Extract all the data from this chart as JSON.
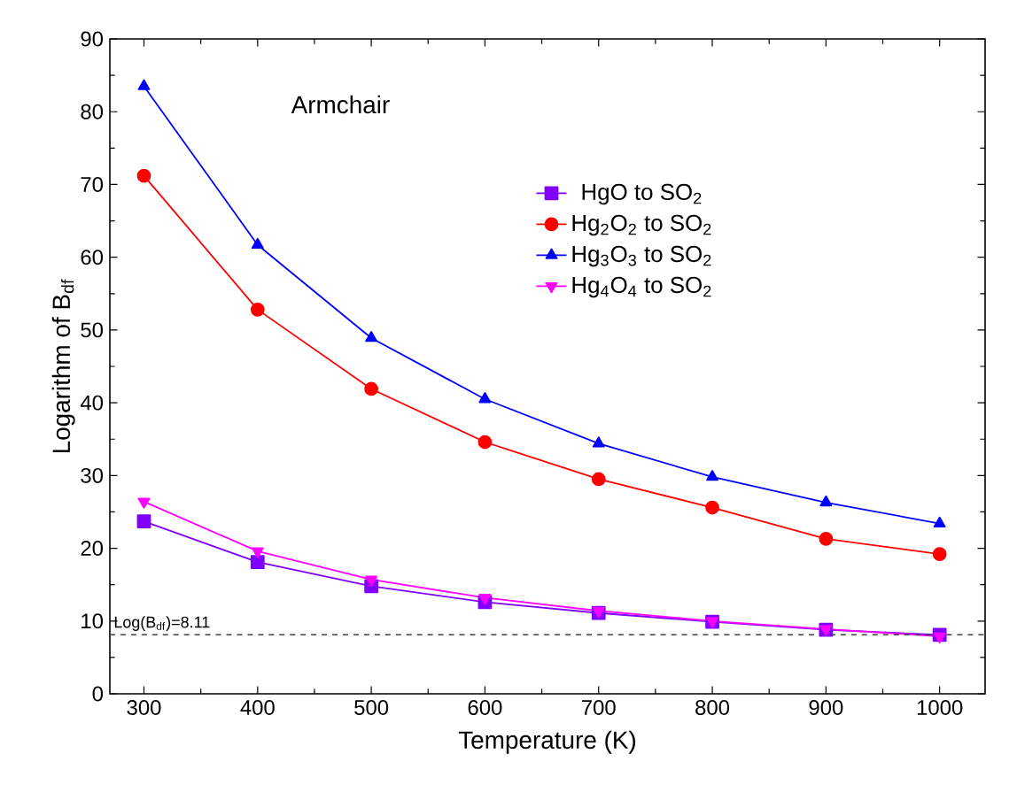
{
  "chart_data": {
    "type": "line",
    "xlabel": "Temperature (K)",
    "ylabel": "Logarithm of B$_{df}$",
    "x": [
      300,
      400,
      500,
      600,
      700,
      800,
      900,
      1000
    ],
    "series": [
      {
        "name": "HgO to SO$_{2}$",
        "color": "#8000ff",
        "marker": "square",
        "values": [
          23.7,
          18.1,
          14.8,
          12.6,
          11.1,
          9.9,
          8.8,
          8.1
        ]
      },
      {
        "name": "Hg$_{2}$O$_{2}$ to SO$_{2}$",
        "color": "#ff0000",
        "marker": "circle",
        "values": [
          71.2,
          52.8,
          41.9,
          34.6,
          29.5,
          25.6,
          21.3,
          19.2
        ]
      },
      {
        "name": "Hg$_{3}$O$_{3}$ to SO$_{2}$",
        "color": "#0000ff",
        "marker": "triangle",
        "values": [
          83.5,
          61.7,
          48.9,
          40.5,
          34.4,
          29.8,
          26.3,
          23.4
        ]
      },
      {
        "name": "Hg$_{4}$O$_{4}$ to SO$_{2}$",
        "color": "#ff00ff",
        "marker": "triangle-down",
        "values": [
          26.4,
          19.6,
          15.7,
          13.2,
          11.4,
          10.0,
          8.9,
          7.9
        ]
      }
    ],
    "xlim": [
      270,
      1040
    ],
    "ylim": [
      0,
      90
    ],
    "xticks": [
      300,
      400,
      500,
      600,
      700,
      800,
      900,
      1000
    ],
    "yticks": [
      0,
      10,
      20,
      30,
      40,
      50,
      60,
      70,
      80,
      90
    ],
    "ref_lines": [
      {
        "axis": "y",
        "value": 8.11,
        "label": "Log(B$_{df}$)=8.11",
        "color": "#404040",
        "line_style": "dashed"
      }
    ],
    "annotations": [
      "Armchair"
    ],
    "legend": "right",
    "grid": false,
    "line_style": "solid"
  }
}
